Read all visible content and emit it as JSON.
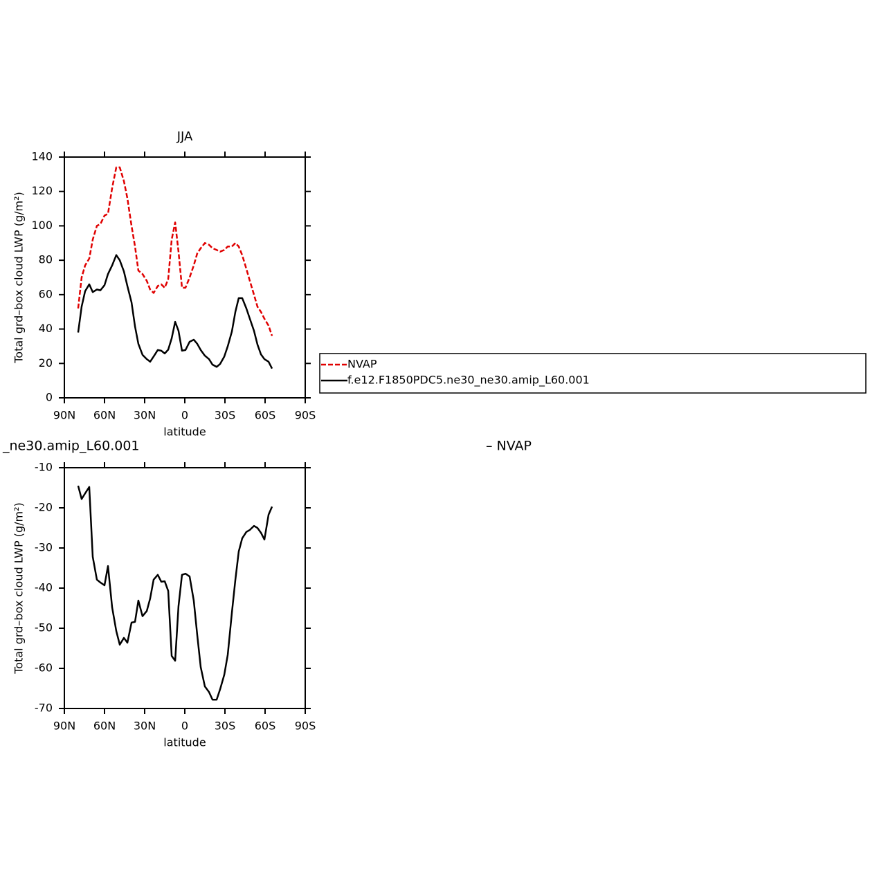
{
  "chart_data": [
    {
      "type": "line",
      "title": "JJA",
      "xlabel": "latitude",
      "ylabel": "Total grd–box cloud LWP (g/m²)",
      "x": [
        79.7,
        77.1,
        74.5,
        71.4,
        68.8,
        65.7,
        63.1,
        60.0,
        57.4,
        54.3,
        51.2,
        48.6,
        45.5,
        42.9,
        39.8,
        37.2,
        34.7,
        31.6,
        28.4,
        25.9,
        23.3,
        20.2,
        17.6,
        15.0,
        12.4,
        9.8,
        7.2,
        4.7,
        2.1,
        -0.5,
        -3.6,
        -6.7,
        -9.3,
        -11.9,
        -15.0,
        -18.1,
        -20.7,
        -23.8,
        -26.4,
        -29.5,
        -32.1,
        -35.2,
        -37.8,
        -40.3,
        -42.9,
        -46.0,
        -48.6,
        -51.7,
        -54.3,
        -56.9,
        -59.5,
        -62.6,
        -65.2
      ],
      "series": [
        {
          "name": "NVAP",
          "color": "#e00000",
          "dash": true,
          "values": [
            52,
            70,
            77,
            81,
            92,
            100,
            101,
            106,
            107,
            122,
            134,
            134,
            126,
            116,
            100,
            88,
            74,
            72,
            68,
            63,
            61,
            65,
            66,
            64,
            69,
            92,
            102,
            85,
            64,
            64,
            70,
            77,
            84,
            87,
            90,
            89,
            87,
            86,
            85,
            86,
            88,
            88,
            90,
            88,
            83,
            75,
            68,
            60,
            53,
            50,
            46,
            42,
            36
          ]
        },
        {
          "name": "f.e12.F1850PDC5.ne30_ne30.amip_L60.001",
          "color": "#000000",
          "dash": false,
          "values": [
            38,
            53,
            62,
            66,
            61.5,
            63,
            62.5,
            65.5,
            72,
            77,
            83,
            80,
            73.5,
            65,
            55.5,
            41.5,
            31.4,
            25,
            22.5,
            21,
            24,
            27.8,
            27.4,
            25.8,
            28,
            34.6,
            44.2,
            39,
            27.4,
            27.8,
            32.6,
            33.8,
            31.4,
            27.8,
            24.5,
            22.5,
            19.3,
            18,
            19.7,
            24,
            30,
            38.6,
            50,
            58,
            58,
            52,
            46,
            39,
            31,
            25.3,
            22.5,
            21,
            17
          ]
        }
      ],
      "xlim": [
        90,
        -90
      ],
      "xticks": [
        {
          "value": 90,
          "label": "90N"
        },
        {
          "value": 60,
          "label": "60N"
        },
        {
          "value": 30,
          "label": "30N"
        },
        0,
        {
          "value": -30,
          "label": "30S"
        },
        {
          "value": -60,
          "label": "60S"
        },
        {
          "value": -90,
          "label": "90S"
        }
      ],
      "ylim": [
        0,
        140
      ],
      "yticks": [
        0,
        20,
        40,
        60,
        80,
        100,
        120,
        140
      ],
      "legend": "right"
    },
    {
      "type": "line",
      "title_left": "_ne30.amip_L60.001",
      "title_right": "–  NVAP",
      "xlabel": "latitude",
      "ylabel": "Total grd–box cloud LWP (g/m²)",
      "x": [
        79.7,
        77.1,
        74.5,
        71.4,
        68.8,
        65.7,
        63.1,
        60.0,
        57.4,
        54.3,
        51.2,
        48.6,
        45.5,
        42.9,
        39.8,
        37.2,
        34.7,
        31.6,
        28.4,
        25.9,
        23.3,
        20.2,
        17.6,
        15.0,
        12.4,
        9.8,
        7.2,
        4.7,
        2.1,
        -0.5,
        -3.6,
        -6.7,
        -9.3,
        -11.9,
        -15.0,
        -18.1,
        -20.7,
        -23.8,
        -26.4,
        -29.5,
        -32.1,
        -35.2,
        -37.8,
        -40.3,
        -42.9,
        -46.0,
        -48.6,
        -51.7,
        -54.3,
        -56.9,
        -59.5,
        -62.6,
        -65.2
      ],
      "series": [
        {
          "color": "#000000",
          "dash": false,
          "values": [
            -14.5,
            -17.8,
            -16.4,
            -14.8,
            -32.2,
            -37.9,
            -38.6,
            -39.3,
            -34.5,
            -44.8,
            -50.7,
            -54.1,
            -52.4,
            -53.6,
            -48.6,
            -48.4,
            -43.1,
            -47,
            -45.7,
            -42.6,
            -37.9,
            -36.7,
            -38.4,
            -38.3,
            -40.7,
            -56.9,
            -58.1,
            -44.5,
            -36.7,
            -36.4,
            -37.1,
            -43.1,
            -51.7,
            -59.7,
            -64.5,
            -65.9,
            -67.8,
            -67.8,
            -65.2,
            -61.6,
            -56.6,
            -46.1,
            -37.9,
            -30.9,
            -27.6,
            -26.0,
            -25.5,
            -24.5,
            -25,
            -26.2,
            -27.9,
            -21.7,
            -19.7
          ]
        }
      ],
      "xlim": [
        90,
        -90
      ],
      "xticks": [
        {
          "value": 90,
          "label": "90N"
        },
        {
          "value": 60,
          "label": "60N"
        },
        {
          "value": 30,
          "label": "30N"
        },
        0,
        {
          "value": -30,
          "label": "30S"
        },
        {
          "value": -60,
          "label": "60S"
        },
        {
          "value": -90,
          "label": "90S"
        }
      ],
      "ylim": [
        -70,
        -10
      ],
      "yticks": [
        -70,
        -60,
        -50,
        -40,
        -30,
        -20,
        -10
      ]
    }
  ]
}
